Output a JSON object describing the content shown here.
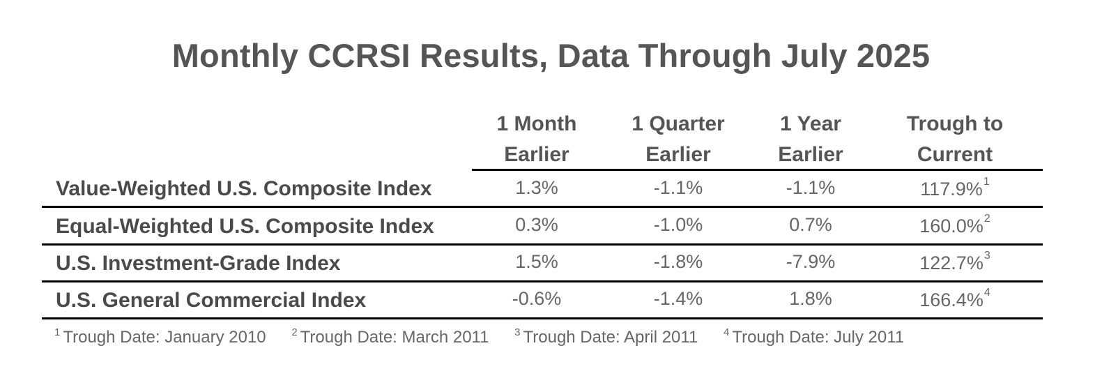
{
  "title": "Monthly CCRSI Results, Data Through July 2025",
  "columns": [
    {
      "line1": "1 Month",
      "line2": "Earlier"
    },
    {
      "line1": "1 Quarter",
      "line2": "Earlier"
    },
    {
      "line1": "1 Year",
      "line2": "Earlier"
    },
    {
      "line1": "Trough to",
      "line2": "Current"
    }
  ],
  "rows": [
    {
      "label": "Value-Weighted U.S. Composite Index",
      "month": "1.3%",
      "quarter": "-1.1%",
      "year": "-1.1%",
      "trough": "117.9%",
      "note": "1"
    },
    {
      "label": "Equal-Weighted U.S. Composite Index",
      "month": "0.3%",
      "quarter": "-1.0%",
      "year": "0.7%",
      "trough": "160.0%",
      "note": "2"
    },
    {
      "label": "U.S. Investment-Grade Index",
      "month": "1.5%",
      "quarter": "-1.8%",
      "year": "-7.9%",
      "trough": "122.7%",
      "note": "3"
    },
    {
      "label": "U.S. General Commercial Index",
      "month": "-0.6%",
      "quarter": "-1.4%",
      "year": "1.8%",
      "trough": "166.4%",
      "note": "4"
    }
  ],
  "footnotes": [
    {
      "num": "1",
      "text": "Trough Date: January 2010"
    },
    {
      "num": "2",
      "text": "Trough Date: March 2011"
    },
    {
      "num": "3",
      "text": "Trough Date: April 2011"
    },
    {
      "num": "4",
      "text": "Trough Date: July 2011"
    }
  ]
}
